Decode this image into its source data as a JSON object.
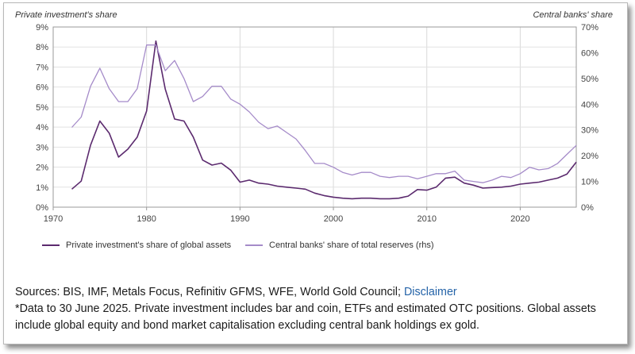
{
  "chart_data": {
    "type": "line",
    "left_axis_title": "Private investment's share",
    "right_axis_title": "Central banks' share",
    "x_ticks": [
      1970,
      1980,
      1990,
      2000,
      2010,
      2020
    ],
    "xlim": [
      1970,
      2026
    ],
    "ylim_left": [
      0,
      9
    ],
    "ylim_right": [
      0,
      70
    ],
    "y_left_ticks": [
      "9%",
      "8%",
      "7%",
      "6%",
      "5%",
      "4%",
      "3%",
      "2%",
      "1%",
      "0%"
    ],
    "y_left_values": [
      9,
      8,
      7,
      6,
      5,
      4,
      3,
      2,
      1,
      0
    ],
    "y_right_ticks": [
      "70%",
      "60%",
      "50%",
      "40%",
      "30%",
      "20%",
      "10%",
      "0%"
    ],
    "y_right_values": [
      70,
      60,
      50,
      40,
      30,
      20,
      10,
      0
    ],
    "series": [
      {
        "name": "Private investment's share of global assets",
        "axis": "left",
        "color": "#5b2a6e",
        "x": [
          1972,
          1973,
          1974,
          1975,
          1976,
          1977,
          1978,
          1979,
          1980,
          1981,
          1982,
          1983,
          1984,
          1985,
          1986,
          1987,
          1988,
          1989,
          1990,
          1991,
          1992,
          1993,
          1994,
          1995,
          1996,
          1997,
          1998,
          1999,
          2000,
          2001,
          2002,
          2003,
          2004,
          2005,
          2006,
          2007,
          2008,
          2009,
          2010,
          2011,
          2012,
          2013,
          2014,
          2015,
          2016,
          2017,
          2018,
          2019,
          2020,
          2021,
          2022,
          2023,
          2024,
          2025,
          2026
        ],
        "y": [
          0.9,
          1.3,
          3.1,
          4.3,
          3.7,
          2.5,
          2.9,
          3.5,
          4.8,
          8.3,
          5.9,
          4.4,
          4.3,
          3.5,
          2.35,
          2.1,
          2.2,
          1.85,
          1.25,
          1.35,
          1.2,
          1.15,
          1.05,
          1.0,
          0.95,
          0.9,
          0.7,
          0.58,
          0.5,
          0.45,
          0.42,
          0.45,
          0.45,
          0.42,
          0.42,
          0.45,
          0.55,
          0.88,
          0.85,
          1.0,
          1.45,
          1.5,
          1.2,
          1.1,
          0.95,
          0.98,
          1.0,
          1.05,
          1.15,
          1.2,
          1.25,
          1.35,
          1.45,
          1.65,
          2.25
        ]
      },
      {
        "name": "Central banks' share of total reserves (rhs)",
        "axis": "right",
        "color": "#a58bc9",
        "x": [
          1972,
          1973,
          1974,
          1975,
          1976,
          1977,
          1978,
          1979,
          1980,
          1981,
          1982,
          1983,
          1984,
          1985,
          1986,
          1987,
          1988,
          1989,
          1990,
          1991,
          1992,
          1993,
          1994,
          1995,
          1996,
          1997,
          1998,
          1999,
          2000,
          2001,
          2002,
          2003,
          2004,
          2005,
          2006,
          2007,
          2008,
          2009,
          2010,
          2011,
          2012,
          2013,
          2014,
          2015,
          2016,
          2017,
          2018,
          2019,
          2020,
          2021,
          2022,
          2023,
          2024,
          2025,
          2026
        ],
        "y": [
          31,
          35,
          47,
          54,
          46,
          41,
          41,
          46,
          63,
          63,
          53,
          57,
          50,
          41,
          43,
          47,
          47,
          42,
          40,
          37,
          33,
          30.5,
          31.5,
          29,
          26.5,
          22,
          17,
          17,
          15.5,
          13.5,
          12.5,
          13.5,
          13.5,
          12,
          11.5,
          12,
          12,
          11,
          12,
          13,
          13,
          14,
          10.5,
          10,
          9.5,
          10.5,
          12,
          11.5,
          13,
          15.5,
          14.5,
          15,
          17,
          20.5,
          24
        ]
      }
    ]
  },
  "legend": {
    "private_label": "Private investment's share of global assets",
    "central_label": "Central banks' share of total reserves (rhs)"
  },
  "footer": {
    "sources_text": "Sources: BIS, IMF, Metals Focus, Refinitiv GFMS, WFE, World Gold Council; ",
    "disclaimer_link": "Disclaimer",
    "note_line1": "*Data to 30 June 2025. Private investment includes bar and coin, ETFs and estimated OTC positions. Global assets",
    "note_line2": "include global equity and bond market capitalisation excluding central bank holdings ex gold."
  }
}
